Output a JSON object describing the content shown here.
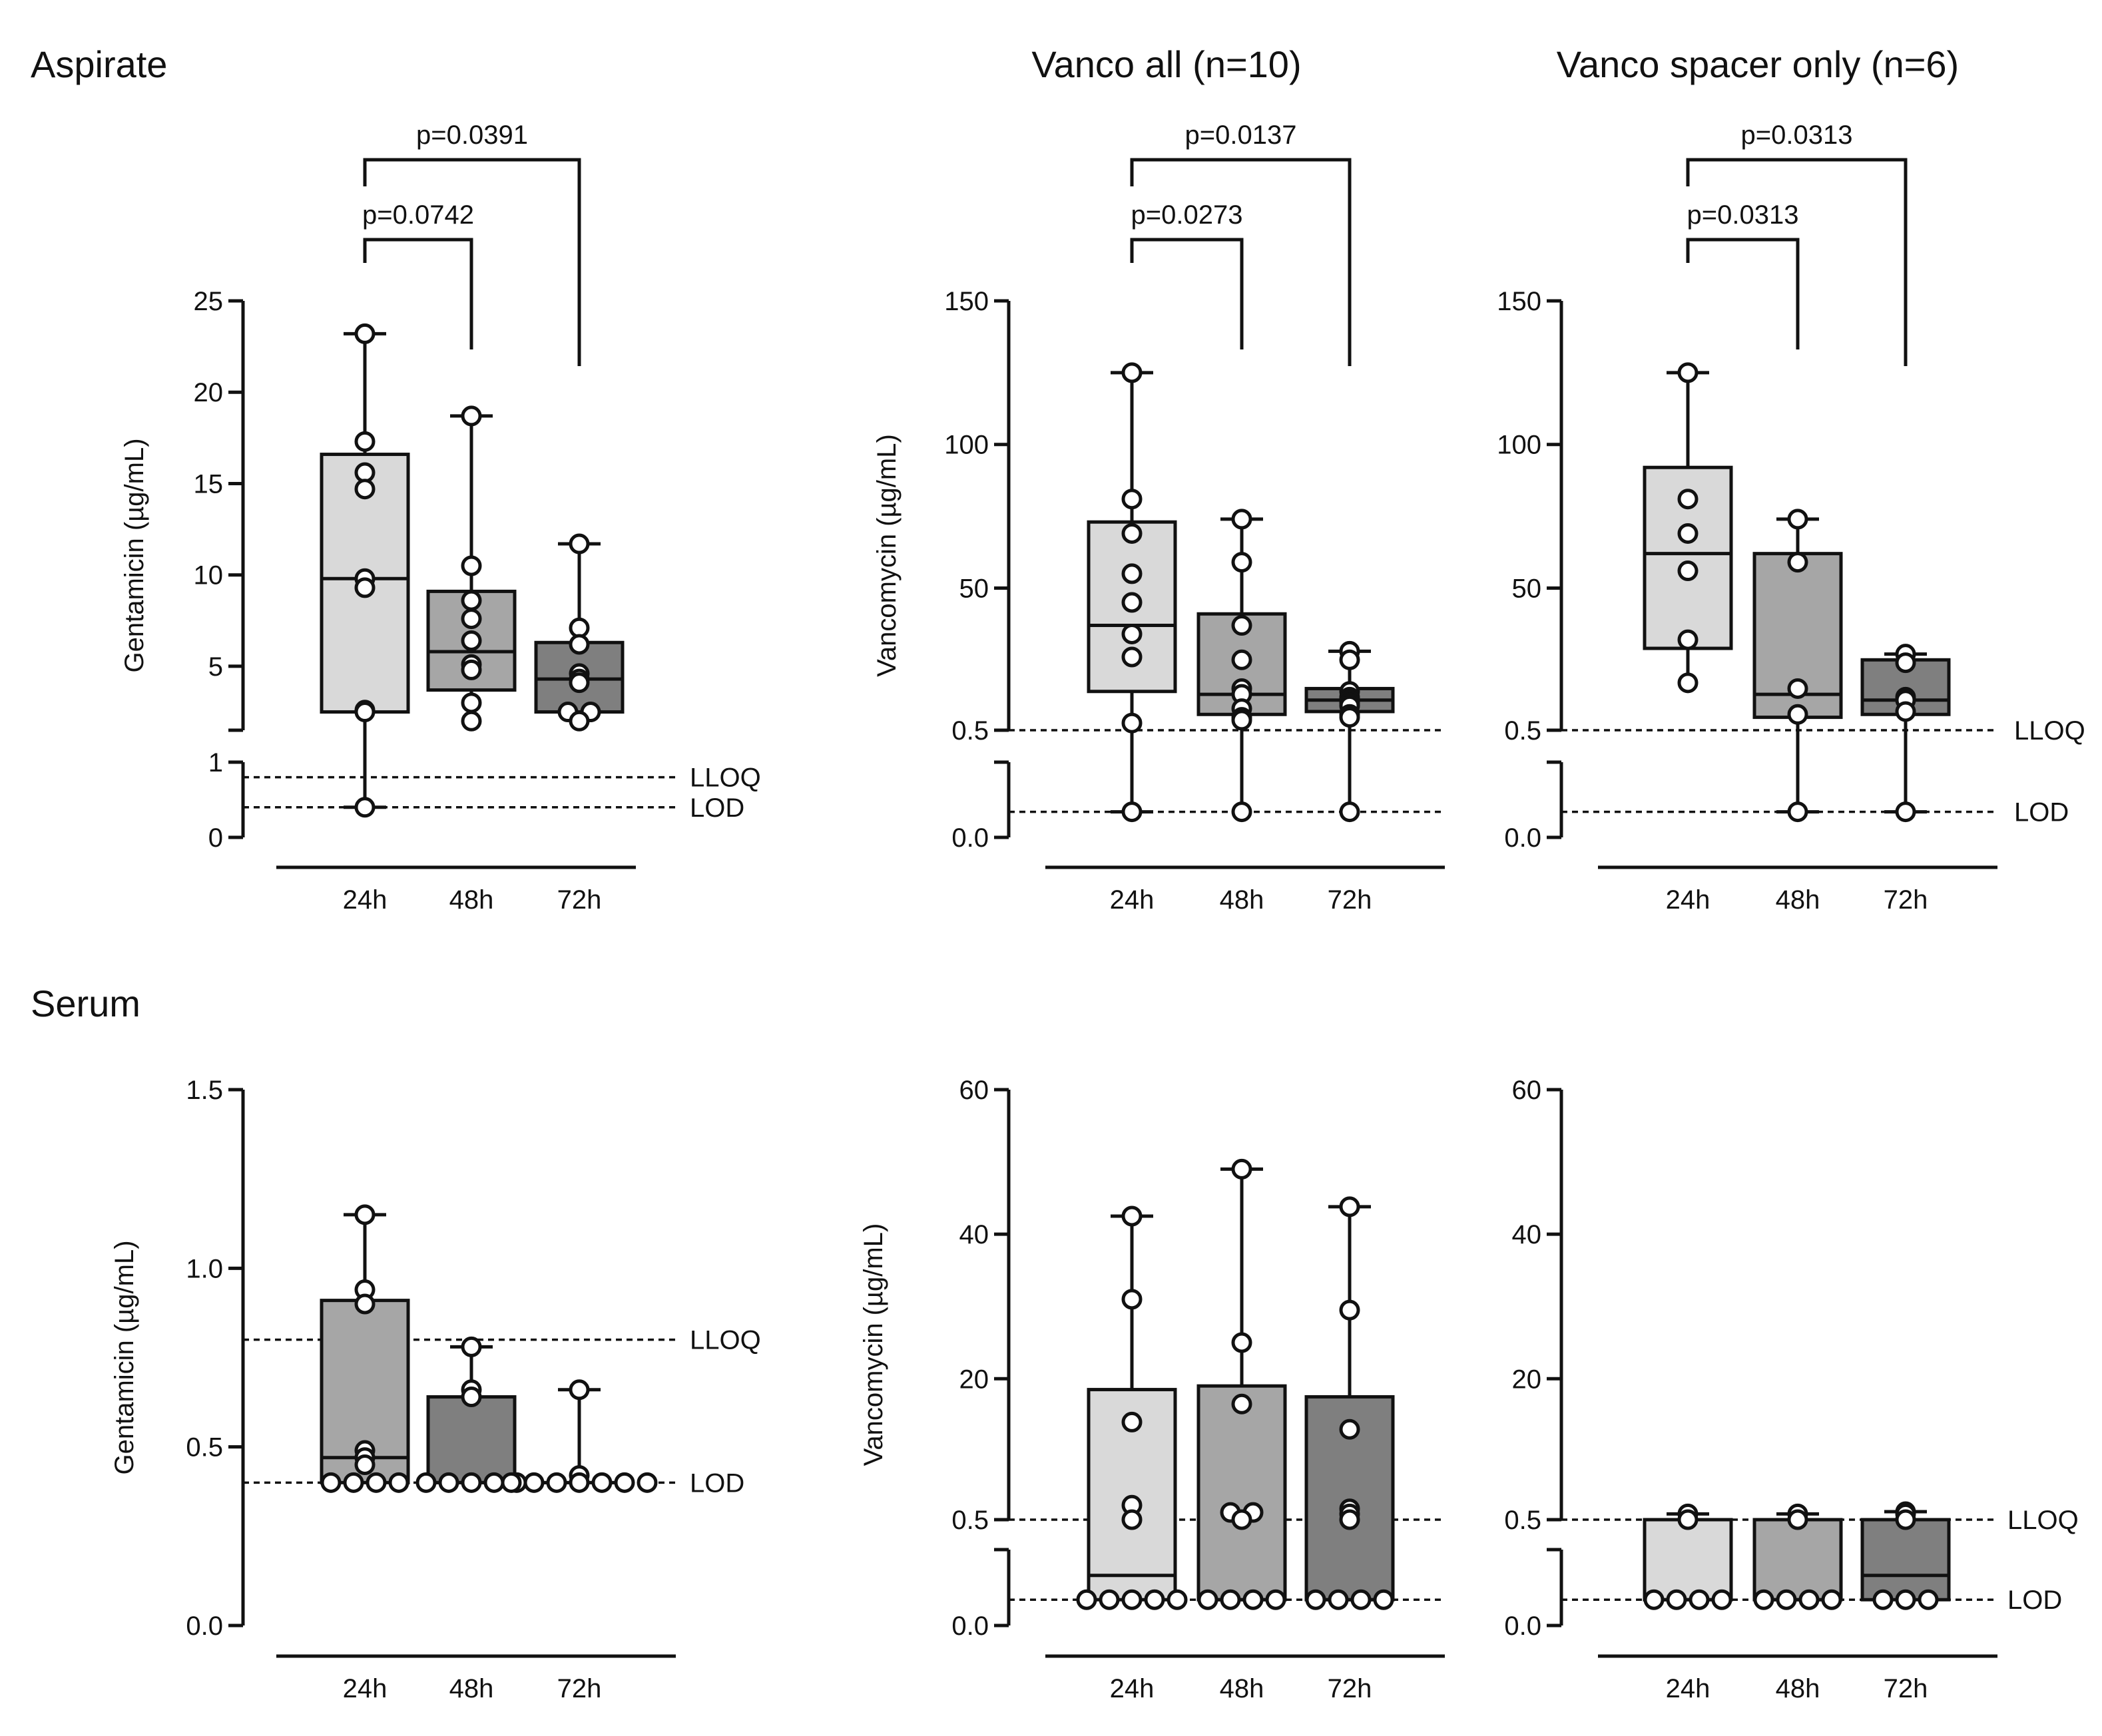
{
  "rows": {
    "aspirate": "Aspirate",
    "serum": "Serum"
  },
  "column_titles": [
    "Vanco all (n=10)",
    "Vanco spacer only  (n=6)"
  ],
  "colors": {
    "light": "#d9d9d9",
    "mid": "#a6a6a6",
    "dark": "#7f7f7f"
  },
  "chart_data": [
    {
      "id": "asp-gent",
      "type": "box",
      "title": "Aspirate",
      "ylabel": "Gentamicin (µg/mL)",
      "categories": [
        "24h",
        "48h",
        "72h"
      ],
      "upper_axis": {
        "range": [
          1.5,
          25
        ],
        "ticks": [
          5,
          10,
          15,
          20,
          25
        ],
        "tick_labels": [
          "5",
          "10",
          "15",
          "20",
          "25"
        ]
      },
      "lower_axis": {
        "range": [
          0,
          1
        ],
        "ticks": [
          0,
          1
        ],
        "tick_labels": [
          "0",
          "1"
        ]
      },
      "ref_lines": [
        {
          "label": "LLOQ",
          "value": 0.8
        },
        {
          "label": "LOD",
          "value": 0.4
        }
      ],
      "boxes": [
        {
          "q1": 2.5,
          "median": 9.8,
          "q3": 16.6,
          "min": 0.4,
          "max": 23.2,
          "cap_low": true
        },
        {
          "q1": 3.7,
          "median": 5.8,
          "q3": 9.1,
          "min": 2.0,
          "max": 18.7
        },
        {
          "q1": 2.5,
          "median": 4.3,
          "q3": 6.3,
          "min": 2.0,
          "max": 11.7
        }
      ],
      "points": [
        [
          23.2,
          17.3,
          15.6,
          14.7,
          9.8,
          9.3,
          2.6,
          2.5,
          0.4
        ],
        [
          18.7,
          10.5,
          8.6,
          7.6,
          6.4,
          5.1,
          4.8,
          3.0,
          2.0
        ],
        [
          11.7,
          7.1,
          6.2,
          4.6,
          4.3,
          4.1,
          2.5,
          2.5,
          2.0
        ]
      ],
      "significance": [
        {
          "from": "24h",
          "to": "48h",
          "label": "p=0.0742"
        },
        {
          "from": "24h",
          "to": "72h",
          "label": "p=0.0391"
        }
      ]
    },
    {
      "id": "asp-vanco-all",
      "type": "box",
      "title": "Vanco all (n=10)",
      "ylabel": "Vancomycin (µg/mL)",
      "categories": [
        "24h",
        "48h",
        "72h"
      ],
      "upper_axis": {
        "range": [
          0.5,
          150
        ],
        "ticks": [
          50,
          100,
          150
        ],
        "tick_labels": [
          "50",
          "100",
          "150"
        ]
      },
      "lower_axis": {
        "range": [
          0,
          0.5
        ],
        "ticks": [
          0,
          0.5
        ],
        "tick_labels": [
          "0.0",
          "0.5"
        ]
      },
      "ref_lines": [
        {
          "label": "",
          "value": 0.5
        },
        {
          "label": "",
          "value": 0.17
        }
      ],
      "boxes": [
        {
          "q1": 14,
          "median": 37,
          "q3": 73,
          "min": 0.17,
          "max": 125,
          "cap_low": true
        },
        {
          "q1": 6,
          "median": 13,
          "q3": 41,
          "min": 0.17,
          "max": 74
        },
        {
          "q1": 7,
          "median": 11,
          "q3": 15,
          "min": 0.17,
          "max": 28
        }
      ],
      "points": [
        [
          125,
          81,
          69,
          55,
          45,
          34,
          26,
          3,
          0.17
        ],
        [
          74,
          59,
          37,
          25,
          15,
          13,
          8,
          5,
          4,
          0.17
        ],
        [
          28,
          25,
          14,
          12,
          11,
          10,
          9,
          6,
          5,
          0.17
        ]
      ],
      "significance": [
        {
          "from": "24h",
          "to": "48h",
          "label": "p=0.0273"
        },
        {
          "from": "24h",
          "to": "72h",
          "label": "p=0.0137"
        }
      ]
    },
    {
      "id": "asp-vanco-spacer",
      "type": "box",
      "title": "Vanco spacer only  (n=6)",
      "ylabel": "",
      "categories": [
        "24h",
        "48h",
        "72h"
      ],
      "upper_axis": {
        "range": [
          0.5,
          150
        ],
        "ticks": [
          50,
          100,
          150
        ],
        "tick_labels": [
          "50",
          "100",
          "150"
        ]
      },
      "lower_axis": {
        "range": [
          0,
          0.5
        ],
        "ticks": [
          0,
          0.5
        ],
        "tick_labels": [
          "0.0",
          "0.5"
        ]
      },
      "ref_lines": [
        {
          "label": "LLOQ",
          "value": 0.5
        },
        {
          "label": "LOD",
          "value": 0.17
        }
      ],
      "boxes": [
        {
          "q1": 29,
          "median": 62,
          "q3": 92,
          "min": 17,
          "max": 125
        },
        {
          "q1": 5,
          "median": 13,
          "q3": 62,
          "min": 0.17,
          "max": 74,
          "cap_low": true
        },
        {
          "q1": 6,
          "median": 11,
          "q3": 25,
          "min": 0.17,
          "max": 27,
          "cap_low": true
        }
      ],
      "points": [
        [
          125,
          81,
          69,
          56,
          32,
          17
        ],
        [
          74,
          59,
          15,
          6,
          0.17
        ],
        [
          27,
          24,
          12,
          11,
          7,
          0.17
        ]
      ],
      "significance": [
        {
          "from": "24h",
          "to": "48h",
          "label": "p=0.0313"
        },
        {
          "from": "24h",
          "to": "72h",
          "label": "p=0.0313"
        }
      ]
    },
    {
      "id": "serum-gent",
      "type": "bar",
      "title": "Serum",
      "ylabel": "Gentamicin (µg/mL)",
      "categories": [
        "24h",
        "48h",
        "72h"
      ],
      "axis": {
        "range": [
          0,
          1.5
        ],
        "ticks": [
          0,
          0.5,
          1.0,
          1.5
        ],
        "tick_labels": [
          "0.0",
          "0.5",
          "1.0",
          "1.5"
        ]
      },
      "ref_lines": [
        {
          "label": "LLOQ",
          "value": 0.8
        },
        {
          "label": "LOD",
          "value": 0.4
        }
      ],
      "boxes": [
        {
          "q1": 0.4,
          "median": 0.47,
          "q3": 0.91,
          "min": 0.4,
          "max": 1.15,
          "shade": "mid"
        },
        {
          "q1": 0.4,
          "median": 0.4,
          "q3": 0.64,
          "min": 0.4,
          "max": 0.78,
          "shade": "dark"
        },
        {
          "q1": 0.4,
          "median": 0.4,
          "q3": 0.4,
          "min": 0.4,
          "max": 0.66,
          "shade": "none"
        }
      ],
      "points": [
        [
          1.15,
          0.94,
          0.9,
          0.49,
          0.47,
          0.45,
          0.4,
          0.4,
          0.4,
          0.4
        ],
        [
          0.78,
          0.66,
          0.64,
          0.4,
          0.4,
          0.4,
          0.4,
          0.4
        ],
        [
          0.66,
          0.42,
          0.4,
          0.4,
          0.4,
          0.4,
          0.4,
          0.4,
          0.4
        ]
      ]
    },
    {
      "id": "serum-vanco-all",
      "type": "bar",
      "title": "",
      "ylabel": "Vancomycin (µg/mL)",
      "categories": [
        "24h",
        "48h",
        "72h"
      ],
      "upper_axis": {
        "range": [
          0.5,
          60
        ],
        "ticks": [
          20,
          40,
          60
        ],
        "tick_labels": [
          "20",
          "40",
          "60"
        ]
      },
      "lower_axis": {
        "range": [
          0,
          0.5
        ],
        "ticks": [
          0,
          0.5
        ],
        "tick_labels": [
          "0.0",
          "0.5"
        ]
      },
      "ref_lines": [
        {
          "label": "",
          "value": 0.5
        },
        {
          "label": "",
          "value": 0.17
        }
      ],
      "boxes": [
        {
          "q1": 0.17,
          "median": 0.33,
          "q3": 18.5,
          "min": 0.17,
          "max": 42.5
        },
        {
          "q1": 0.17,
          "median": 0.17,
          "q3": 19,
          "min": 0.17,
          "max": 49
        },
        {
          "q1": 0.17,
          "median": 0.17,
          "q3": 17.5,
          "min": 0.17,
          "max": 43.8
        }
      ],
      "points": [
        [
          42.5,
          31,
          14,
          2.5,
          0.5,
          0.17,
          0.17,
          0.17,
          0.17,
          0.17
        ],
        [
          49,
          25,
          16.5,
          1.5,
          1.5,
          0.5,
          0.17,
          0.17,
          0.17,
          0.17
        ],
        [
          43.8,
          29.5,
          13,
          2,
          1.3,
          0.5,
          0.17,
          0.17,
          0.17,
          0.17
        ]
      ]
    },
    {
      "id": "serum-vanco-spacer",
      "type": "bar",
      "title": "",
      "ylabel": "",
      "categories": [
        "24h",
        "48h",
        "72h"
      ],
      "upper_axis": {
        "range": [
          0.5,
          60
        ],
        "ticks": [
          20,
          40,
          60
        ],
        "tick_labels": [
          "20",
          "40",
          "60"
        ]
      },
      "lower_axis": {
        "range": [
          0,
          0.5
        ],
        "ticks": [
          0,
          0.5
        ],
        "tick_labels": [
          "0.0",
          "0.5"
        ]
      },
      "ref_lines": [
        {
          "label": "LLOQ",
          "value": 0.5
        },
        {
          "label": "LOD",
          "value": 0.17
        }
      ],
      "boxes": [
        {
          "q1": 0.17,
          "median": 0.17,
          "q3": 0.5,
          "min": 0.17,
          "max": 1.3
        },
        {
          "q1": 0.17,
          "median": 0.17,
          "q3": 0.5,
          "min": 0.17,
          "max": 1.3
        },
        {
          "q1": 0.17,
          "median": 0.33,
          "q3": 0.5,
          "min": 0.17,
          "max": 1.6
        }
      ],
      "points": [
        [
          1.3,
          0.5,
          0.17,
          0.17,
          0.17,
          0.17
        ],
        [
          1.3,
          0.5,
          0.17,
          0.17,
          0.17,
          0.17
        ],
        [
          1.6,
          1.3,
          0.5,
          0.17,
          0.17,
          0.17
        ]
      ]
    }
  ]
}
